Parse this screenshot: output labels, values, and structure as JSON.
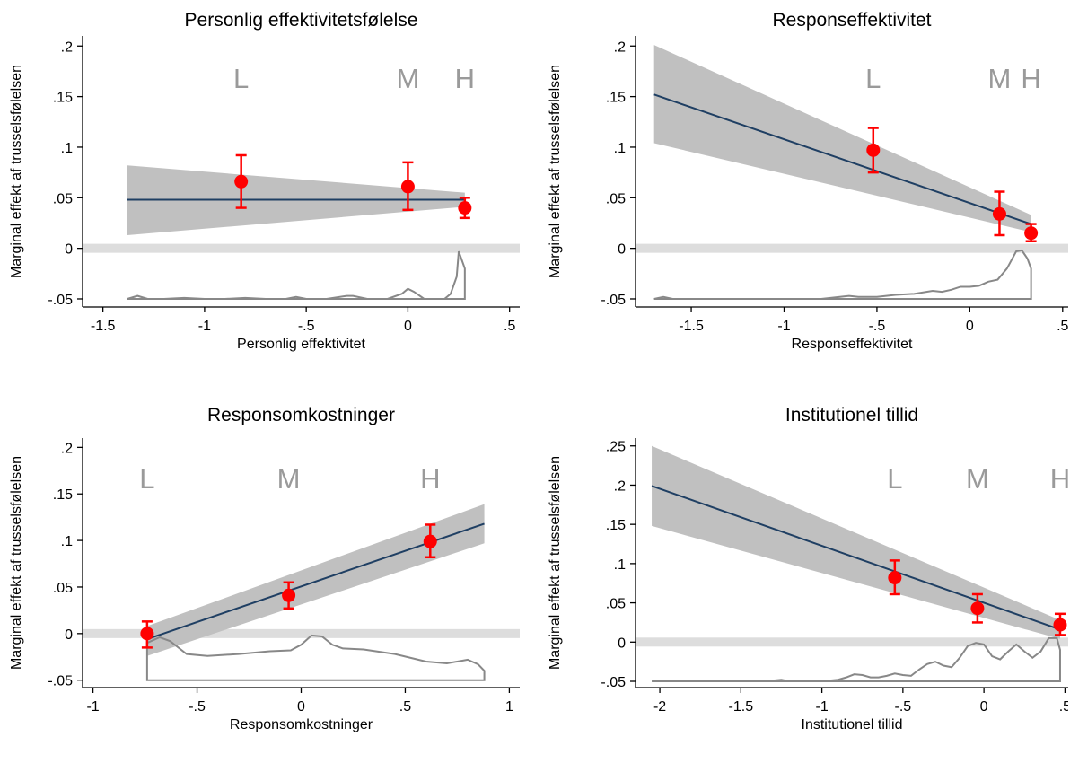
{
  "figure": {
    "y_axis_label": "Marginal effekt af trusselsfølelsen"
  },
  "style": {
    "band_color": "#c0c0c0",
    "line_color": "#1f3f63",
    "point_color": "#ff0000",
    "zero_band_color": "#dddddd",
    "density_color": "#888888",
    "marker_text_color": "#9a9a9a"
  },
  "chart_data": [
    {
      "type": "line",
      "title": "Personlig effektivitetsfølelse",
      "xlabel": "Personlig effektivitet",
      "ylabel": "Marginal effekt af trusselsfølelsen",
      "xlim": [
        -1.6,
        0.55
      ],
      "ylim": [
        -0.058,
        0.21
      ],
      "x_ticks": [
        -1.5,
        -1,
        -0.5,
        0,
        0.5
      ],
      "x_tick_labels": [
        "-1.5",
        "-1",
        "-.5",
        "0",
        ".5"
      ],
      "y_ticks": [
        -0.05,
        0,
        0.05,
        0.1,
        0.15,
        0.2
      ],
      "y_tick_labels": [
        "-.05",
        "0",
        ".05",
        ".1",
        ".15",
        ".2"
      ],
      "line": {
        "x": [
          -1.38,
          0.28
        ],
        "y": [
          0.048,
          0.048
        ]
      },
      "ci_band": {
        "x": [
          -1.38,
          0.28
        ],
        "lower": [
          0.013,
          0.041
        ],
        "upper": [
          0.082,
          0.055
        ]
      },
      "points": [
        {
          "label": "L",
          "x": -0.82,
          "y": 0.066,
          "lo": 0.04,
          "hi": 0.092
        },
        {
          "label": "M",
          "x": 0.0,
          "y": 0.061,
          "lo": 0.038,
          "hi": 0.085
        },
        {
          "label": "H",
          "x": 0.28,
          "y": 0.04,
          "lo": 0.03,
          "hi": 0.05
        }
      ],
      "density": {
        "baseline": -0.05,
        "x": [
          -1.38,
          -1.33,
          -1.28,
          -1.2,
          -1.1,
          -1.0,
          -0.9,
          -0.8,
          -0.7,
          -0.6,
          -0.55,
          -0.5,
          -0.4,
          -0.3,
          -0.27,
          -0.2,
          -0.1,
          -0.03,
          0.0,
          0.03,
          0.08,
          0.13,
          0.18,
          0.21,
          0.24,
          0.25,
          0.28
        ],
        "y": [
          -0.05,
          -0.047,
          -0.05,
          -0.05,
          -0.049,
          -0.05,
          -0.05,
          -0.049,
          -0.05,
          -0.05,
          -0.048,
          -0.05,
          -0.05,
          -0.047,
          -0.047,
          -0.05,
          -0.05,
          -0.045,
          -0.04,
          -0.043,
          -0.05,
          -0.05,
          -0.05,
          -0.045,
          -0.028,
          -0.003,
          -0.02
        ]
      },
      "has_grid": false
    },
    {
      "type": "line",
      "title": "Responseffektivitet",
      "xlabel": "Responseffektivitet",
      "ylabel": "Marginal effekt af trusselsfølelsen",
      "xlim": [
        -1.8,
        0.53
      ],
      "ylim": [
        -0.058,
        0.21
      ],
      "x_ticks": [
        -1.5,
        -1,
        -0.5,
        0,
        0.5
      ],
      "x_tick_labels": [
        "-1.5",
        "-1",
        "-.5",
        "0",
        ".5"
      ],
      "y_ticks": [
        -0.05,
        0,
        0.05,
        0.1,
        0.15,
        0.2
      ],
      "y_tick_labels": [
        "-.05",
        "0",
        ".05",
        ".1",
        ".15",
        ".2"
      ],
      "line": {
        "x": [
          -1.7,
          0.33
        ],
        "y": [
          0.152,
          0.024
        ]
      },
      "ci_band": {
        "x": [
          -1.7,
          0.33
        ],
        "lower": [
          0.104,
          0.016
        ],
        "upper": [
          0.201,
          0.033
        ]
      },
      "points": [
        {
          "label": "L",
          "x": -0.52,
          "y": 0.097,
          "lo": 0.075,
          "hi": 0.119
        },
        {
          "label": "M",
          "x": 0.16,
          "y": 0.034,
          "lo": 0.013,
          "hi": 0.056
        },
        {
          "label": "H",
          "x": 0.33,
          "y": 0.015,
          "lo": 0.007,
          "hi": 0.024
        }
      ],
      "density": {
        "baseline": -0.05,
        "x": [
          -1.7,
          -1.65,
          -1.6,
          -1.4,
          -1.2,
          -1.0,
          -0.8,
          -0.7,
          -0.65,
          -0.6,
          -0.5,
          -0.4,
          -0.3,
          -0.2,
          -0.15,
          -0.1,
          -0.05,
          0.0,
          0.05,
          0.1,
          0.15,
          0.2,
          0.25,
          0.28,
          0.31,
          0.33
        ],
        "y": [
          -0.05,
          -0.048,
          -0.05,
          -0.05,
          -0.05,
          -0.05,
          -0.05,
          -0.048,
          -0.047,
          -0.048,
          -0.048,
          -0.046,
          -0.045,
          -0.042,
          -0.043,
          -0.041,
          -0.038,
          -0.038,
          -0.037,
          -0.033,
          -0.031,
          -0.02,
          -0.003,
          -0.002,
          -0.01,
          -0.02
        ]
      },
      "has_grid": false
    },
    {
      "type": "line",
      "title": "Responsomkostninger",
      "xlabel": "Responsomkostninger",
      "ylabel": "Marginal effekt af trusselsfølelsen",
      "xlim": [
        -1.05,
        1.05
      ],
      "ylim": [
        -0.058,
        0.21
      ],
      "x_ticks": [
        -1,
        -0.5,
        0,
        0.5,
        1
      ],
      "x_tick_labels": [
        "-1",
        "-.5",
        "0",
        ".5",
        "1"
      ],
      "y_ticks": [
        -0.05,
        0,
        0.05,
        0.1,
        0.15,
        0.2
      ],
      "y_tick_labels": [
        "-.05",
        "0",
        ".05",
        ".1",
        ".15",
        ".2"
      ],
      "line": {
        "x": [
          -0.74,
          0.88
        ],
        "y": [
          -0.006,
          0.118
        ]
      },
      "ci_band": {
        "x": [
          -0.74,
          0.88
        ],
        "lower": [
          -0.024,
          0.097
        ],
        "upper": [
          0.008,
          0.139
        ]
      },
      "points": [
        {
          "label": "L",
          "x": -0.74,
          "y": 0.0,
          "lo": -0.015,
          "hi": 0.013
        },
        {
          "label": "M",
          "x": -0.06,
          "y": 0.041,
          "lo": 0.027,
          "hi": 0.055
        },
        {
          "label": "H",
          "x": 0.62,
          "y": 0.099,
          "lo": 0.082,
          "hi": 0.117
        }
      ],
      "density": {
        "baseline": -0.05,
        "x": [
          -0.74,
          -0.68,
          -0.63,
          -0.55,
          -0.45,
          -0.3,
          -0.15,
          -0.05,
          0.0,
          0.05,
          0.1,
          0.15,
          0.2,
          0.3,
          0.45,
          0.6,
          0.7,
          0.75,
          0.8,
          0.85,
          0.88
        ],
        "y": [
          -0.01,
          -0.004,
          -0.008,
          -0.022,
          -0.024,
          -0.022,
          -0.019,
          -0.018,
          -0.012,
          -0.002,
          -0.003,
          -0.012,
          -0.016,
          -0.017,
          -0.022,
          -0.03,
          -0.032,
          -0.03,
          -0.028,
          -0.033,
          -0.04
        ]
      },
      "has_grid": false
    },
    {
      "type": "line",
      "title": "Institutionel tillid",
      "xlabel": "Institutionel tillid",
      "ylabel": "Marginal effekt af trusselsfølelsen",
      "xlim": [
        -2.15,
        0.52
      ],
      "ylim": [
        -0.058,
        0.26
      ],
      "x_ticks": [
        -2,
        -1.5,
        -1,
        -0.5,
        0,
        0.5
      ],
      "x_tick_labels": [
        "-2",
        "-1.5",
        "-1",
        "-.5",
        "0",
        ".5"
      ],
      "y_ticks": [
        -0.05,
        0,
        0.05,
        0.1,
        0.15,
        0.2,
        0.25
      ],
      "y_tick_labels": [
        "-.05",
        "0",
        ".05",
        ".1",
        ".15",
        ".2",
        ".25"
      ],
      "line": {
        "x": [
          -2.05,
          0.47
        ],
        "y": [
          0.199,
          0.016
        ]
      },
      "ci_band": {
        "x": [
          -2.05,
          0.47
        ],
        "lower": [
          0.148,
          0.004
        ],
        "upper": [
          0.25,
          0.028
        ]
      },
      "points": [
        {
          "label": "L",
          "x": -0.55,
          "y": 0.082,
          "lo": 0.061,
          "hi": 0.104
        },
        {
          "label": "M",
          "x": -0.04,
          "y": 0.043,
          "lo": 0.025,
          "hi": 0.061
        },
        {
          "label": "H",
          "x": 0.47,
          "y": 0.022,
          "lo": 0.009,
          "hi": 0.036
        }
      ],
      "density": {
        "baseline": -0.05,
        "x": [
          -2.05,
          -1.9,
          -1.7,
          -1.5,
          -1.3,
          -1.25,
          -1.2,
          -1.1,
          -1.0,
          -0.9,
          -0.85,
          -0.8,
          -0.75,
          -0.7,
          -0.65,
          -0.6,
          -0.55,
          -0.5,
          -0.45,
          -0.4,
          -0.35,
          -0.3,
          -0.25,
          -0.2,
          -0.15,
          -0.1,
          -0.05,
          0.0,
          0.05,
          0.1,
          0.15,
          0.2,
          0.25,
          0.3,
          0.35,
          0.4,
          0.45,
          0.47
        ],
        "y": [
          -0.05,
          -0.05,
          -0.05,
          -0.05,
          -0.049,
          -0.048,
          -0.05,
          -0.05,
          -0.05,
          -0.048,
          -0.045,
          -0.041,
          -0.042,
          -0.045,
          -0.045,
          -0.043,
          -0.04,
          -0.042,
          -0.043,
          -0.035,
          -0.028,
          -0.025,
          -0.03,
          -0.032,
          -0.02,
          -0.005,
          -0.001,
          -0.003,
          -0.018,
          -0.022,
          -0.012,
          -0.003,
          -0.012,
          -0.02,
          -0.012,
          0.005,
          0.005,
          -0.01
        ]
      },
      "has_grid": false
    }
  ]
}
